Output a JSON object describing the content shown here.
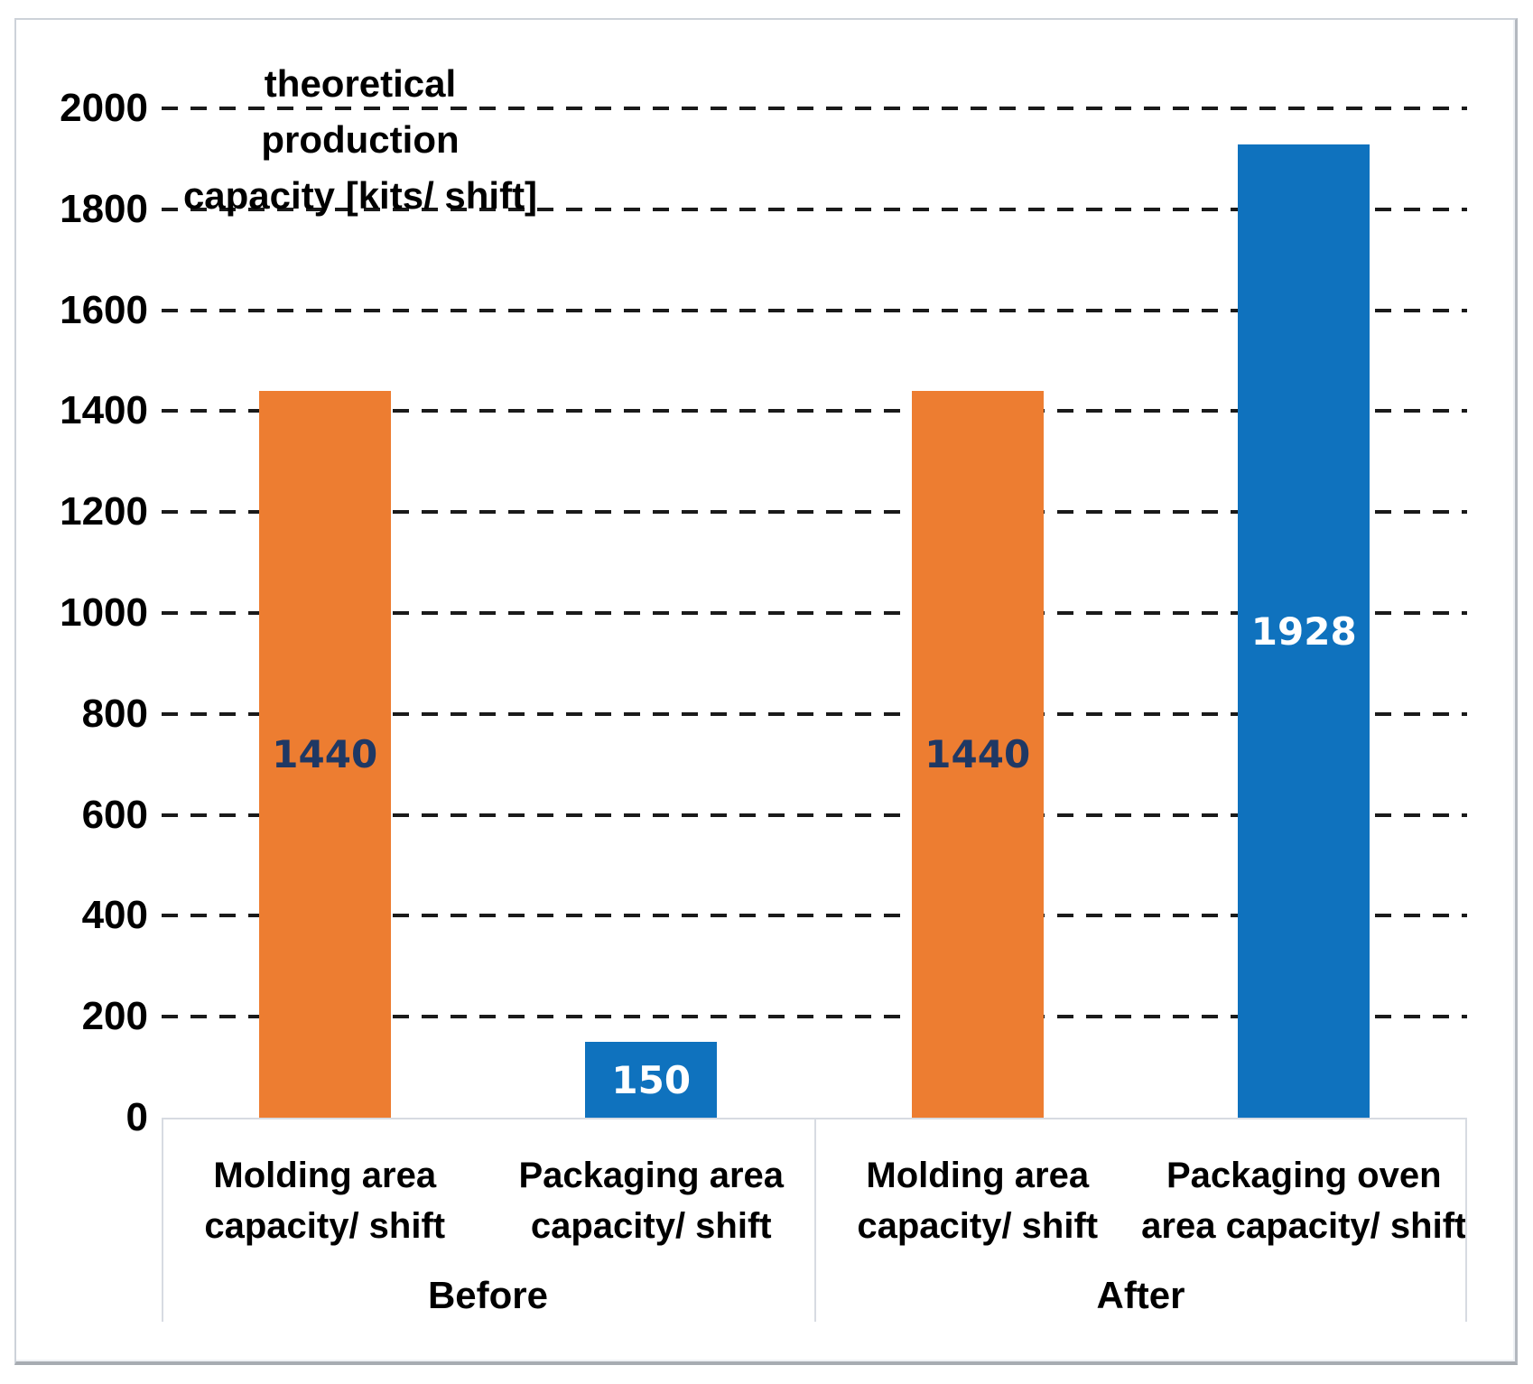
{
  "chart_data": {
    "type": "bar",
    "title": "theoretical production capacity [kits/ shift]",
    "title_lines": [
      "theoretical production",
      "capacity [kits/ shift]"
    ],
    "y_axis": {
      "min": 0,
      "max": 2000,
      "tick_step": 200,
      "ticks": [
        0,
        200,
        400,
        600,
        800,
        1000,
        1200,
        1400,
        1600,
        1800,
        2000
      ],
      "gridlines": "dashed"
    },
    "groups": [
      {
        "label": "Before",
        "span": [
          0,
          1
        ]
      },
      {
        "label": "After",
        "span": [
          2,
          3
        ]
      }
    ],
    "categories": [
      {
        "label_lines": [
          "Molding area",
          "capacity/ shift"
        ],
        "group": "Before",
        "value": 1440,
        "bar_color": "orange",
        "value_label": "1440",
        "value_label_color": "navy"
      },
      {
        "label_lines": [
          "Packaging area",
          "capacity/ shift"
        ],
        "group": "Before",
        "value": 150,
        "bar_color": "blue",
        "value_label": "150",
        "value_label_color": "white"
      },
      {
        "label_lines": [
          "Molding area",
          "capacity/ shift"
        ],
        "group": "After",
        "value": 1440,
        "bar_color": "orange",
        "value_label": "1440",
        "value_label_color": "navy"
      },
      {
        "label_lines": [
          "Packaging oven",
          "area capacity/ shift"
        ],
        "group": "After",
        "value": 1928,
        "bar_color": "blue",
        "value_label": "1928",
        "value_label_color": "white"
      }
    ],
    "values": [
      1440,
      150,
      1440,
      1928
    ],
    "colors": {
      "orange": "#ED7D31",
      "blue": "#0F72BE",
      "navy": "#1F3864",
      "white": "#FFFFFF",
      "gridline": "#1A1A1A",
      "axis_text": "#000000",
      "divider": "#D7DBE2"
    },
    "legend": "none"
  }
}
